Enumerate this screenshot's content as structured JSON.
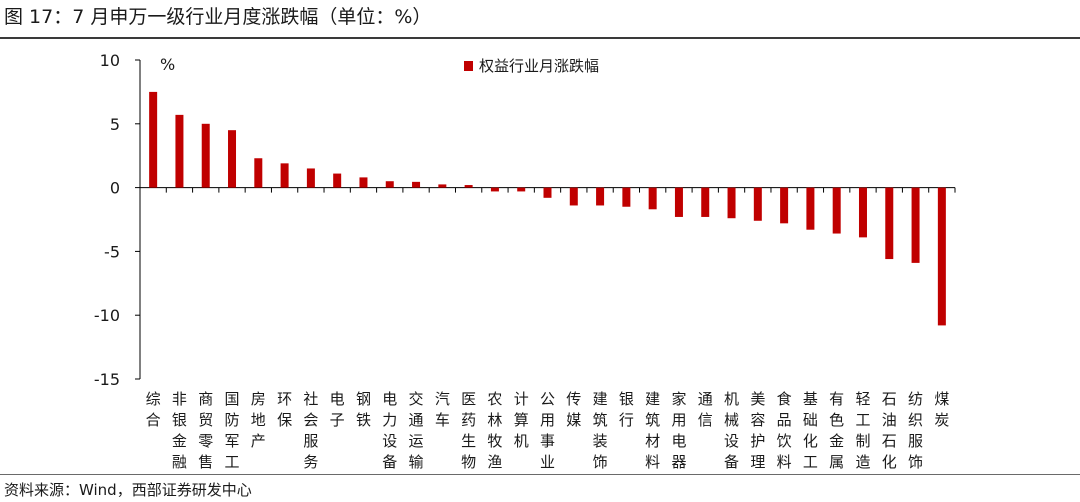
{
  "figure_title": "图 17：7 月申万一级行业月度涨跌幅（单位：%）",
  "source_note": "资料来源：Wind，西部证券研发中心",
  "colors": {
    "bar": "#c00000",
    "axis": "#000000"
  },
  "chart_data": {
    "type": "bar",
    "unit_label": "%",
    "legend": {
      "entries": [
        "权益行业月涨跌幅"
      ],
      "placement": "top-center"
    },
    "ylim": [
      -15,
      10
    ],
    "yticks": [
      10,
      5,
      0,
      -5,
      -10,
      -15
    ],
    "grid": false,
    "categories": [
      "综合",
      "非银金融",
      "商贸零售",
      "国防军工",
      "房地产",
      "环保",
      "社会服务",
      "电子",
      "钢铁",
      "电力设备",
      "交通运输",
      "汽车",
      "医药生物",
      "农林牧渔",
      "计算机",
      "公用事业",
      "传媒",
      "建筑装饰",
      "银行",
      "建筑材料",
      "家用电器",
      "通信",
      "机械设备",
      "美容护理",
      "食品饮料",
      "基础化工",
      "有色金属",
      "轻工制造",
      "石油石化",
      "纺织服饰",
      "煤炭"
    ],
    "series": [
      {
        "name": "权益行业月涨跌幅",
        "values": [
          7.5,
          5.7,
          5.0,
          4.5,
          2.3,
          1.9,
          1.5,
          1.1,
          0.8,
          0.5,
          0.45,
          0.25,
          0.2,
          -0.3,
          -0.3,
          -0.8,
          -1.4,
          -1.4,
          -1.5,
          -1.7,
          -2.3,
          -2.3,
          -2.4,
          -2.6,
          -2.8,
          -3.3,
          -3.6,
          -3.9,
          -5.6,
          -5.9,
          -10.8
        ]
      }
    ]
  }
}
